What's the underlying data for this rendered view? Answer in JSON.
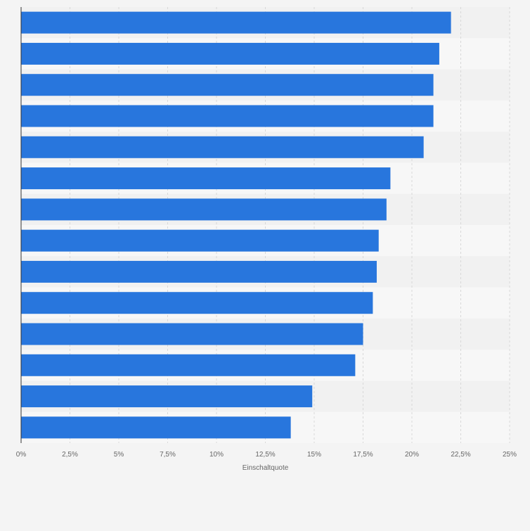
{
  "chart_data": {
    "type": "bar",
    "orientation": "horizontal",
    "categories": [
      "",
      "",
      "",
      "",
      "",
      "",
      "",
      "",
      "",
      "",
      "",
      "",
      "",
      ""
    ],
    "values": [
      22.0,
      21.4,
      21.1,
      21.1,
      20.6,
      18.9,
      18.7,
      18.3,
      18.2,
      18.0,
      17.5,
      17.1,
      14.9,
      13.8
    ],
    "xlabel": "Einschaltquote",
    "ylabel": "",
    "xlim": [
      0,
      25
    ],
    "tick_labels": [
      "0%",
      "2,5%",
      "5%",
      "7,5%",
      "10%",
      "12,5%",
      "15%",
      "17,5%",
      "20%",
      "22,5%",
      "25%"
    ],
    "grid": true,
    "legend": "none",
    "colors": {
      "bar": "#2876dd",
      "background": "#f4f4f4",
      "band_light": "#f7f7f7",
      "band_dark": "#f1f1f1",
      "grid": "#d8d8d8",
      "axis": "#333333",
      "tick_text": "#666666"
    }
  }
}
